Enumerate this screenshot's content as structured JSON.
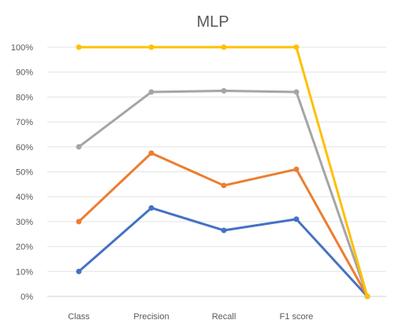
{
  "chart_data": {
    "type": "line",
    "title": "MLP",
    "xlabel": "",
    "ylabel": "",
    "categories": [
      "Class",
      "Precision",
      "Recall",
      "F1 score",
      ""
    ],
    "y_ticks": [
      "0%",
      "10%",
      "20%",
      "30%",
      "40%",
      "50%",
      "60%",
      "70%",
      "80%",
      "90%",
      "100%"
    ],
    "ylim": [
      0,
      100
    ],
    "grid": true,
    "legend": "none",
    "series": [
      {
        "color": "#4472C4",
        "values": [
          10,
          35.5,
          26.5,
          31,
          0
        ]
      },
      {
        "color": "#ED7D31",
        "values": [
          30,
          57.5,
          44.5,
          51,
          0
        ]
      },
      {
        "color": "#A5A5A5",
        "values": [
          60,
          82,
          82.5,
          82,
          0
        ]
      },
      {
        "color": "#FFC000",
        "values": [
          100,
          100,
          100,
          100,
          0
        ]
      }
    ]
  }
}
